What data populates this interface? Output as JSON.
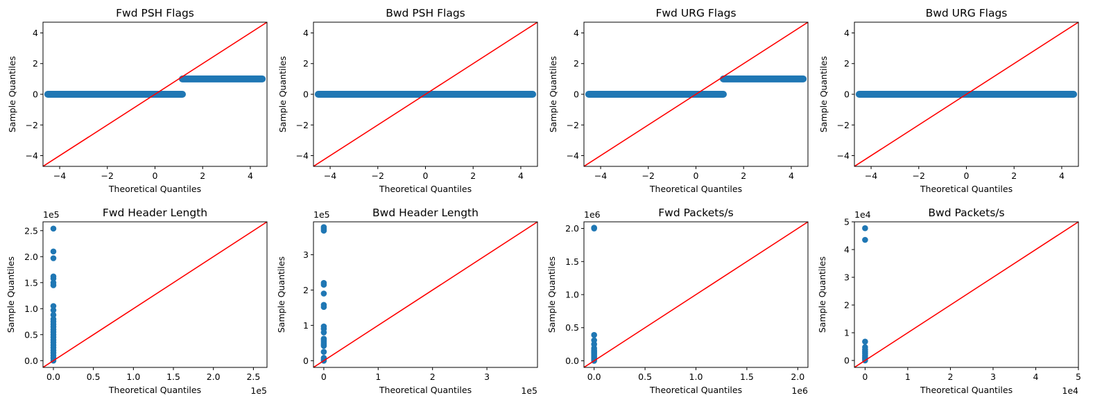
{
  "figure": {
    "qq_point_color": "#1f77b4",
    "reference_line_color": "#ff0000"
  },
  "chart_data": [
    {
      "type": "scatter",
      "title": "Fwd PSH Flags",
      "xlabel": "Theoretical Quantiles",
      "ylabel": "Sample Quantiles",
      "xlim": [
        -4.7,
        4.7
      ],
      "ylim": [
        -4.7,
        4.7
      ],
      "xticks": [
        -4,
        -2,
        0,
        2,
        4
      ],
      "yticks": [
        -4,
        -2,
        0,
        2,
        4
      ],
      "xtick_labels": [
        "−4",
        "−2",
        "0",
        "2",
        "4"
      ],
      "ytick_labels": [
        "−4",
        "−2",
        "0",
        "2",
        "4"
      ],
      "x_multiplier": "",
      "y_multiplier": "",
      "bands": [
        {
          "x_from": -4.5,
          "x_to": 1.15,
          "y": 0
        },
        {
          "x_from": 1.15,
          "x_to": 4.5,
          "y": 1
        }
      ],
      "points": [],
      "reference_line": "45-degree"
    },
    {
      "type": "scatter",
      "title": "Bwd PSH Flags",
      "xlabel": "Theoretical Quantiles",
      "ylabel": "Sample Quantiles",
      "xlim": [
        -4.7,
        4.7
      ],
      "ylim": [
        -4.7,
        4.7
      ],
      "xticks": [
        -4,
        -2,
        0,
        2,
        4
      ],
      "yticks": [
        -4,
        -2,
        0,
        2,
        4
      ],
      "xtick_labels": [
        "−4",
        "−2",
        "0",
        "2",
        "4"
      ],
      "ytick_labels": [
        "−4",
        "−2",
        "0",
        "2",
        "4"
      ],
      "x_multiplier": "",
      "y_multiplier": "",
      "bands": [
        {
          "x_from": -4.5,
          "x_to": 4.5,
          "y": 0
        }
      ],
      "points": [],
      "reference_line": "45-degree"
    },
    {
      "type": "scatter",
      "title": "Fwd URG Flags",
      "xlabel": "Theoretical Quantiles",
      "ylabel": "Sample Quantiles",
      "xlim": [
        -4.7,
        4.7
      ],
      "ylim": [
        -4.7,
        4.7
      ],
      "xticks": [
        -4,
        -2,
        0,
        2,
        4
      ],
      "yticks": [
        -4,
        -2,
        0,
        2,
        4
      ],
      "xtick_labels": [
        "−4",
        "−2",
        "0",
        "2",
        "4"
      ],
      "ytick_labels": [
        "−4",
        "−2",
        "0",
        "2",
        "4"
      ],
      "x_multiplier": "",
      "y_multiplier": "",
      "bands": [
        {
          "x_from": -4.5,
          "x_to": 1.15,
          "y": 0
        },
        {
          "x_from": 1.15,
          "x_to": 4.5,
          "y": 1
        }
      ],
      "points": [],
      "reference_line": "45-degree"
    },
    {
      "type": "scatter",
      "title": "Bwd URG Flags",
      "xlabel": "Theoretical Quantiles",
      "ylabel": "Sample Quantiles",
      "xlim": [
        -4.7,
        4.7
      ],
      "ylim": [
        -4.7,
        4.7
      ],
      "xticks": [
        -4,
        -2,
        0,
        2,
        4
      ],
      "yticks": [
        -4,
        -2,
        0,
        2,
        4
      ],
      "xtick_labels": [
        "−4",
        "−2",
        "0",
        "2",
        "4"
      ],
      "ytick_labels": [
        "−4",
        "−2",
        "0",
        "2",
        "4"
      ],
      "x_multiplier": "",
      "y_multiplier": "",
      "bands": [
        {
          "x_from": -4.5,
          "x_to": 4.5,
          "y": 0
        }
      ],
      "points": [],
      "reference_line": "45-degree"
    },
    {
      "type": "scatter",
      "title": "Fwd Header Length",
      "xlabel": "Theoretical Quantiles",
      "ylabel": "Sample Quantiles",
      "xlim": [
        -13000,
        267000
      ],
      "ylim": [
        -13000,
        267000
      ],
      "xticks": [
        0,
        50000,
        100000,
        150000,
        200000,
        250000
      ],
      "yticks": [
        0,
        50000,
        100000,
        150000,
        200000,
        250000
      ],
      "xtick_labels": [
        "0.0",
        "0.5",
        "1.0",
        "1.5",
        "2.0",
        "2.5"
      ],
      "ytick_labels": [
        "0.0",
        "0.5",
        "1.0",
        "1.5",
        "2.0",
        "2.5"
      ],
      "x_multiplier": "1e5",
      "y_multiplier": "1e5",
      "bands": [],
      "points": [
        [
          0,
          0
        ],
        [
          0,
          5000
        ],
        [
          0,
          10000
        ],
        [
          0,
          15000
        ],
        [
          0,
          20000
        ],
        [
          0,
          25000
        ],
        [
          0,
          30000
        ],
        [
          0,
          35000
        ],
        [
          0,
          40000
        ],
        [
          0,
          45000
        ],
        [
          0,
          50000
        ],
        [
          0,
          55000
        ],
        [
          0,
          60000
        ],
        [
          0,
          65000
        ],
        [
          0,
          70000
        ],
        [
          0,
          75000
        ],
        [
          0,
          80000
        ],
        [
          0,
          88000
        ],
        [
          0,
          97000
        ],
        [
          0,
          105000
        ],
        [
          0,
          145000
        ],
        [
          0,
          150000
        ],
        [
          0,
          158000
        ],
        [
          0,
          162000
        ],
        [
          0,
          197000
        ],
        [
          0,
          210000
        ],
        [
          0,
          254000
        ]
      ],
      "reference_line": "45-degree"
    },
    {
      "type": "scatter",
      "title": "Bwd Header Length",
      "xlabel": "Theoretical Quantiles",
      "ylabel": "Sample Quantiles",
      "xlim": [
        -19000,
        393000
      ],
      "ylim": [
        -19000,
        393000
      ],
      "xticks": [
        0,
        100000,
        200000,
        300000
      ],
      "yticks": [
        0,
        100000,
        200000,
        300000
      ],
      "xtick_labels": [
        "0",
        "1",
        "2",
        "3"
      ],
      "ytick_labels": [
        "0",
        "1",
        "2",
        "3"
      ],
      "x_multiplier": "1e5",
      "y_multiplier": "1e5",
      "bands": [],
      "points": [
        [
          0,
          0
        ],
        [
          0,
          3000
        ],
        [
          0,
          8000
        ],
        [
          0,
          25000
        ],
        [
          0,
          42000
        ],
        [
          0,
          47000
        ],
        [
          0,
          53000
        ],
        [
          0,
          58000
        ],
        [
          0,
          62000
        ],
        [
          0,
          80000
        ],
        [
          0,
          90000
        ],
        [
          0,
          97000
        ],
        [
          0,
          152000
        ],
        [
          0,
          158000
        ],
        [
          0,
          190000
        ],
        [
          0,
          215000
        ],
        [
          0,
          220000
        ],
        [
          0,
          368000
        ],
        [
          0,
          373000
        ],
        [
          0,
          378000
        ]
      ],
      "reference_line": "45-degree"
    },
    {
      "type": "scatter",
      "title": "Fwd Packets/s",
      "xlabel": "Theoretical Quantiles",
      "ylabel": "Sample Quantiles",
      "xlim": [
        -100000,
        2100000
      ],
      "ylim": [
        -100000,
        2100000
      ],
      "xticks": [
        0,
        500000,
        1000000,
        1500000,
        2000000
      ],
      "yticks": [
        0,
        500000,
        1000000,
        1500000,
        2000000
      ],
      "xtick_labels": [
        "0.0",
        "0.5",
        "1.0",
        "1.5",
        "2.0"
      ],
      "ytick_labels": [
        "0.0",
        "0.5",
        "1.0",
        "1.5",
        "2.0"
      ],
      "x_multiplier": "1e6",
      "y_multiplier": "1e6",
      "bands": [],
      "points": [
        [
          0,
          0
        ],
        [
          0,
          20000
        ],
        [
          0,
          40000
        ],
        [
          0,
          60000
        ],
        [
          0,
          80000
        ],
        [
          0,
          100000
        ],
        [
          0,
          120000
        ],
        [
          0,
          140000
        ],
        [
          0,
          160000
        ],
        [
          0,
          190000
        ],
        [
          0,
          250000
        ],
        [
          0,
          310000
        ],
        [
          0,
          390000
        ],
        [
          0,
          2000000
        ],
        [
          0,
          2010000
        ]
      ],
      "reference_line": "45-degree"
    },
    {
      "type": "scatter",
      "title": "Bwd Packets/s",
      "xlabel": "Theoretical Quantiles",
      "ylabel": "Sample Quantiles",
      "xlim": [
        -2500,
        50000
      ],
      "ylim": [
        -2500,
        50000
      ],
      "xticks": [
        0,
        10000,
        20000,
        30000,
        40000,
        50000
      ],
      "yticks": [
        0,
        10000,
        20000,
        30000,
        40000,
        50000
      ],
      "xtick_labels": [
        "0",
        "1",
        "2",
        "3",
        "4",
        "5"
      ],
      "ytick_labels": [
        "0",
        "1",
        "2",
        "3",
        "4",
        "5"
      ],
      "x_multiplier": "1e4",
      "y_multiplier": "1e4",
      "bands": [],
      "points": [
        [
          0,
          0
        ],
        [
          0,
          600
        ],
        [
          0,
          1200
        ],
        [
          0,
          1800
        ],
        [
          0,
          2500
        ],
        [
          0,
          3200
        ],
        [
          0,
          3900
        ],
        [
          0,
          4800
        ],
        [
          0,
          6800
        ],
        [
          0,
          43500
        ],
        [
          0,
          47700
        ]
      ],
      "reference_line": "45-degree"
    }
  ]
}
